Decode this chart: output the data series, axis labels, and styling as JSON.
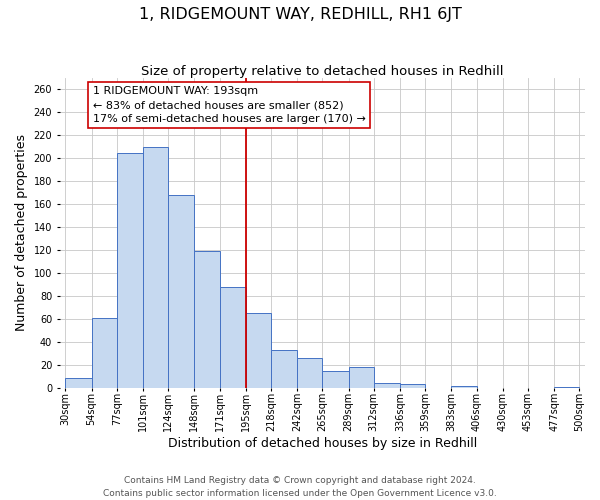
{
  "title": "1, RIDGEMOUNT WAY, REDHILL, RH1 6JT",
  "subtitle": "Size of property relative to detached houses in Redhill",
  "xlabel": "Distribution of detached houses by size in Redhill",
  "ylabel": "Number of detached properties",
  "footer_line1": "Contains HM Land Registry data © Crown copyright and database right 2024.",
  "footer_line2": "Contains public sector information licensed under the Open Government Licence v3.0.",
  "bin_labels": [
    "30sqm",
    "54sqm",
    "77sqm",
    "101sqm",
    "124sqm",
    "148sqm",
    "171sqm",
    "195sqm",
    "218sqm",
    "242sqm",
    "265sqm",
    "289sqm",
    "312sqm",
    "336sqm",
    "359sqm",
    "383sqm",
    "406sqm",
    "430sqm",
    "453sqm",
    "477sqm",
    "500sqm"
  ],
  "bar_values": [
    9,
    61,
    205,
    210,
    168,
    119,
    88,
    65,
    33,
    26,
    15,
    18,
    4,
    3,
    0,
    2,
    0,
    0,
    0,
    1,
    0
  ],
  "bin_edges": [
    30,
    54,
    77,
    101,
    124,
    148,
    171,
    195,
    218,
    242,
    265,
    289,
    312,
    336,
    359,
    383,
    406,
    430,
    453,
    477,
    500
  ],
  "bar_color": "#c6d9f0",
  "bar_edge_color": "#4472c4",
  "vline_x": 195,
  "vline_color": "#cc0000",
  "annotation_line1": "1 RIDGEMOUNT WAY: 193sqm",
  "annotation_line2": "← 83% of detached houses are smaller (852)",
  "annotation_line3": "17% of semi-detached houses are larger (170) →",
  "annotation_box_color": "#ffffff",
  "annotation_box_edge": "#cc0000",
  "ylim": [
    0,
    270
  ],
  "yticks": [
    0,
    20,
    40,
    60,
    80,
    100,
    120,
    140,
    160,
    180,
    200,
    220,
    240,
    260
  ],
  "background_color": "#ffffff",
  "grid_color": "#c8c8c8",
  "title_fontsize": 11.5,
  "subtitle_fontsize": 9.5,
  "axis_label_fontsize": 9,
  "tick_fontsize": 7,
  "annotation_fontsize": 8,
  "footer_fontsize": 6.5
}
